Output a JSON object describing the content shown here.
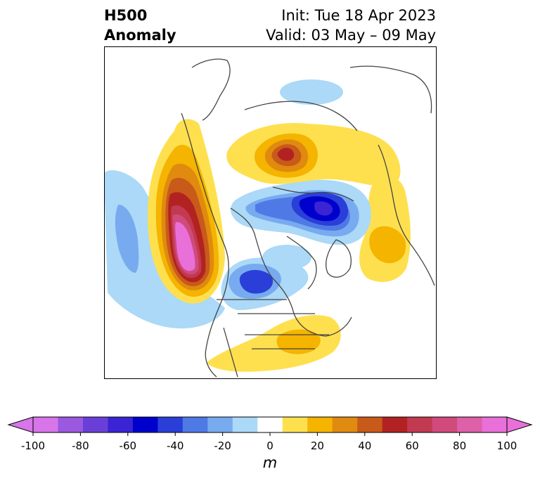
{
  "header": {
    "field_line1": "H500",
    "field_line2": "Anomaly",
    "init": "Init: Tue 18 Apr 2023",
    "valid": "Valid: 03 May – 09 May"
  },
  "map": {
    "projection": "polar stereographic (North America / Arctic)",
    "features": [
      {
        "label": "strong positive anomaly",
        "region": "off western North America (Gulf of Alaska / NE Pacific)",
        "peak_m": 100
      },
      {
        "label": "positive anomaly",
        "region": "northern Eurasia / Siberia",
        "peak_m": 60
      },
      {
        "label": "positive anomaly",
        "region": "southeastern United States",
        "peak_m": 30
      },
      {
        "label": "positive anomaly",
        "region": "Greenland / North Atlantic",
        "peak_m": 30
      },
      {
        "label": "negative anomaly",
        "region": "Arctic / northern Siberia",
        "peak_m": -60
      },
      {
        "label": "negative anomaly",
        "region": "central Canada / Hudson Bay",
        "peak_m": -50
      },
      {
        "label": "negative anomaly",
        "region": "central North Pacific",
        "peak_m": -30
      }
    ]
  },
  "colorbar": {
    "units": "m",
    "tick_labels": [
      "-100",
      "-80",
      "-60",
      "-40",
      "-20",
      "0",
      "20",
      "40",
      "60",
      "80",
      "100"
    ],
    "levels": [
      -100,
      -90,
      -80,
      -70,
      -60,
      -50,
      -40,
      -30,
      -20,
      -10,
      10,
      20,
      30,
      40,
      50,
      60,
      70,
      80,
      90,
      100
    ],
    "colors": [
      "#d875e8",
      "#9b59e0",
      "#6a3fd8",
      "#3a24d4",
      "#0000cc",
      "#2a3fd8",
      "#4f7ae6",
      "#78aaf0",
      "#abd9f7",
      "#ffffff",
      "#fee04f",
      "#f4b400",
      "#e08a10",
      "#c85a1a",
      "#b22222",
      "#c23a50",
      "#d04a7c",
      "#dd60a8",
      "#e870d8"
    ],
    "extend_low": "#d875e8",
    "extend_high": "#e870d8"
  }
}
